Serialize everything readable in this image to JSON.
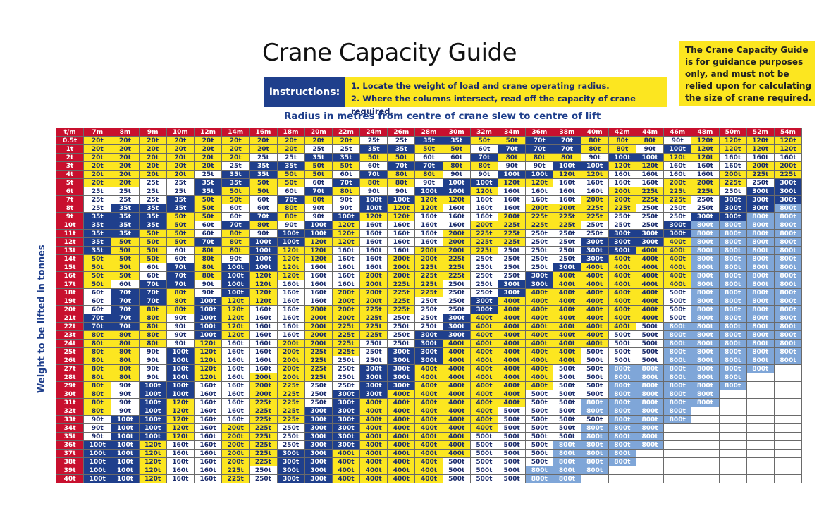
{
  "title": "Crane Capacity Guide",
  "instructions": {
    "label": "Instructions:",
    "step1": "1. Locate the weight of load and crane operating radius.",
    "step2": "2. Where the columns intersect, read off the capacity of crane required."
  },
  "disclaimer": "The Crane Capacity Guide is for guidance purposes only, and must not be relied upon for calculating the size of crane required.",
  "radius_title": "Radius in metres from centre of crane slew to centre of lift",
  "weight_axis": "Weight to be lifted in tonnes",
  "colors": {
    "header_red": "#c8102e",
    "yellow": "#fce620",
    "navy": "#1f3f8c",
    "light_blue": "#7fa6d8",
    "white": "#ffffff"
  },
  "corner": "t/m",
  "columns": [
    "7m",
    "8m",
    "9m",
    "10m",
    "12m",
    "14m",
    "16m",
    "18m",
    "20m",
    "22m",
    "24m",
    "26m",
    "28m",
    "30m",
    "32m",
    "34m",
    "36m",
    "38m",
    "40m",
    "42m",
    "44m",
    "46m",
    "48m",
    "50m",
    "52m",
    "54m"
  ],
  "rows": [
    {
      "w": "0.5t",
      "c": [
        "20t",
        "20t",
        "20t",
        "20t",
        "20t",
        "20t",
        "20t",
        "20t",
        "20t",
        "20t",
        "25t",
        "25t",
        "35t",
        "35t",
        "50t",
        "50t",
        "70t",
        "70t",
        "80t",
        "80t",
        "80t",
        "90t",
        "120t",
        "120t",
        "120t",
        "120t"
      ]
    },
    {
      "w": "1t",
      "c": [
        "20t",
        "20t",
        "20t",
        "20t",
        "20t",
        "20t",
        "20t",
        "20t",
        "25t",
        "25t",
        "35t",
        "35t",
        "50t",
        "50t",
        "60t",
        "70t",
        "70t",
        "70t",
        "80t",
        "80t",
        "90t",
        "100t",
        "120t",
        "120t",
        "120t",
        "120t"
      ]
    },
    {
      "w": "2t",
      "c": [
        "20t",
        "20t",
        "20t",
        "20t",
        "20t",
        "20t",
        "25t",
        "25t",
        "35t",
        "35t",
        "50t",
        "50t",
        "60t",
        "60t",
        "70t",
        "80t",
        "80t",
        "80t",
        "90t",
        "100t",
        "100t",
        "120t",
        "120t",
        "160t",
        "160t",
        "160t"
      ]
    },
    {
      "w": "3t",
      "c": [
        "20t",
        "20t",
        "20t",
        "20t",
        "20t",
        "25t",
        "35t",
        "35t",
        "50t",
        "50t",
        "60t",
        "70t",
        "70t",
        "80t",
        "80t",
        "90t",
        "90t",
        "100t",
        "100t",
        "120t",
        "120t",
        "160t",
        "160t",
        "160t",
        "200t",
        "200t"
      ]
    },
    {
      "w": "4t",
      "c": [
        "20t",
        "20t",
        "20t",
        "20t",
        "25t",
        "35t",
        "35t",
        "50t",
        "50t",
        "60t",
        "70t",
        "80t",
        "80t",
        "90t",
        "90t",
        "100t",
        "100t",
        "120t",
        "120t",
        "160t",
        "160t",
        "160t",
        "160t",
        "200t",
        "225t",
        "225t"
      ]
    },
    {
      "w": "5t",
      "c": [
        "20t",
        "20t",
        "25t",
        "25t",
        "35t",
        "35t",
        "50t",
        "50t",
        "60t",
        "70t",
        "80t",
        "80t",
        "90t",
        "100t",
        "100t",
        "120t",
        "120t",
        "160t",
        "160t",
        "160t",
        "160t",
        "200t",
        "200t",
        "225t",
        "250t",
        "300t"
      ]
    },
    {
      "w": "6t",
      "c": [
        "25t",
        "25t",
        "25t",
        "25t",
        "35t",
        "50t",
        "50t",
        "60t",
        "70t",
        "80t",
        "90t",
        "90t",
        "100t",
        "100t",
        "120t",
        "160t",
        "160t",
        "160t",
        "160t",
        "200t",
        "225t",
        "225t",
        "225t",
        "250t",
        "300t",
        "300t"
      ]
    },
    {
      "w": "7t",
      "c": [
        "25t",
        "25t",
        "25t",
        "35t",
        "50t",
        "50t",
        "60t",
        "70t",
        "80t",
        "90t",
        "100t",
        "100t",
        "120t",
        "120t",
        "160t",
        "160t",
        "160t",
        "160t",
        "200t",
        "200t",
        "225t",
        "225t",
        "250t",
        "300t",
        "300t",
        "300t"
      ]
    },
    {
      "w": "8t",
      "c": [
        "25t",
        "35t",
        "35t",
        "35t",
        "50t",
        "60t",
        "60t",
        "80t",
        "90t",
        "90t",
        "100t",
        "120t",
        "120t",
        "160t",
        "160t",
        "160t",
        "200t",
        "200t",
        "225t",
        "225t",
        "250t",
        "250t",
        "250t",
        "300t",
        "300t",
        "800t"
      ]
    },
    {
      "w": "9t",
      "c": [
        "35t",
        "35t",
        "35t",
        "50t",
        "50t",
        "60t",
        "70t",
        "80t",
        "90t",
        "100t",
        "120t",
        "120t",
        "160t",
        "160t",
        "160t",
        "200t",
        "225t",
        "225t",
        "225t",
        "250t",
        "250t",
        "250t",
        "300t",
        "300t",
        "800t",
        "800t"
      ]
    },
    {
      "w": "10t",
      "c": [
        "35t",
        "35t",
        "35t",
        "50t",
        "60t",
        "70t",
        "80t",
        "90t",
        "100t",
        "120t",
        "160t",
        "160t",
        "160t",
        "160t",
        "200t",
        "225t",
        "225t",
        "225t",
        "250t",
        "250t",
        "250t",
        "300t",
        "800t",
        "800t",
        "800t",
        "800t"
      ]
    },
    {
      "w": "11t",
      "c": [
        "35t",
        "35t",
        "50t",
        "50t",
        "60t",
        "80t",
        "90t",
        "100t",
        "100t",
        "120t",
        "160t",
        "160t",
        "160t",
        "200t",
        "225t",
        "225t",
        "250t",
        "250t",
        "250t",
        "300t",
        "300t",
        "300t",
        "800t",
        "800t",
        "800t",
        "800t"
      ]
    },
    {
      "w": "12t",
      "c": [
        "35t",
        "50t",
        "50t",
        "50t",
        "70t",
        "80t",
        "100t",
        "100t",
        "120t",
        "120t",
        "160t",
        "160t",
        "160t",
        "200t",
        "225t",
        "225t",
        "250t",
        "250t",
        "300t",
        "300t",
        "300t",
        "400t",
        "800t",
        "800t",
        "800t",
        "800t"
      ]
    },
    {
      "w": "13t",
      "c": [
        "35t",
        "50t",
        "50t",
        "60t",
        "80t",
        "80t",
        "100t",
        "120t",
        "120t",
        "160t",
        "160t",
        "160t",
        "200t",
        "200t",
        "225t",
        "250t",
        "250t",
        "250t",
        "300t",
        "300t",
        "400t",
        "400t",
        "800t",
        "800t",
        "800t",
        "800t"
      ]
    },
    {
      "w": "14t",
      "c": [
        "50t",
        "50t",
        "50t",
        "60t",
        "80t",
        "90t",
        "100t",
        "120t",
        "120t",
        "160t",
        "160t",
        "200t",
        "200t",
        "225t",
        "250t",
        "250t",
        "250t",
        "250t",
        "300t",
        "400t",
        "400t",
        "400t",
        "800t",
        "800t",
        "800t",
        "800t"
      ]
    },
    {
      "w": "15t",
      "c": [
        "50t",
        "50t",
        "60t",
        "70t",
        "80t",
        "100t",
        "100t",
        "120t",
        "160t",
        "160t",
        "160t",
        "200t",
        "225t",
        "225t",
        "250t",
        "250t",
        "250t",
        "300t",
        "400t",
        "400t",
        "400t",
        "400t",
        "800t",
        "800t",
        "800t",
        "800t"
      ]
    },
    {
      "w": "16t",
      "c": [
        "50t",
        "50t",
        "60t",
        "70t",
        "80t",
        "100t",
        "120t",
        "120t",
        "160t",
        "160t",
        "200t",
        "200t",
        "225t",
        "225t",
        "250t",
        "250t",
        "300t",
        "400t",
        "400t",
        "400t",
        "400t",
        "400t",
        "800t",
        "800t",
        "800t",
        "800t"
      ]
    },
    {
      "w": "17t",
      "c": [
        "50t",
        "60t",
        "70t",
        "70t",
        "90t",
        "100t",
        "120t",
        "160t",
        "160t",
        "160t",
        "200t",
        "225t",
        "225t",
        "250t",
        "250t",
        "300t",
        "300t",
        "400t",
        "400t",
        "400t",
        "400t",
        "400t",
        "800t",
        "800t",
        "800t",
        "800t"
      ]
    },
    {
      "w": "18t",
      "c": [
        "60t",
        "70t",
        "70t",
        "80t",
        "90t",
        "100t",
        "120t",
        "160t",
        "160t",
        "200t",
        "200t",
        "225t",
        "225t",
        "250t",
        "250t",
        "300t",
        "400t",
        "400t",
        "400t",
        "400t",
        "400t",
        "500t",
        "800t",
        "800t",
        "800t",
        "800t"
      ]
    },
    {
      "w": "19t",
      "c": [
        "60t",
        "70t",
        "70t",
        "80t",
        "100t",
        "120t",
        "120t",
        "160t",
        "160t",
        "200t",
        "200t",
        "225t",
        "250t",
        "250t",
        "300t",
        "400t",
        "400t",
        "400t",
        "400t",
        "400t",
        "400t",
        "500t",
        "800t",
        "800t",
        "800t",
        "800t"
      ]
    },
    {
      "w": "20t",
      "c": [
        "60t",
        "70t",
        "80t",
        "80t",
        "100t",
        "120t",
        "160t",
        "160t",
        "200t",
        "200t",
        "225t",
        "225t",
        "250t",
        "250t",
        "300t",
        "400t",
        "400t",
        "400t",
        "400t",
        "400t",
        "400t",
        "500t",
        "800t",
        "800t",
        "800t",
        "800t"
      ]
    },
    {
      "w": "21t",
      "c": [
        "70t",
        "70t",
        "80t",
        "90t",
        "100t",
        "120t",
        "160t",
        "160t",
        "200t",
        "200t",
        "225t",
        "250t",
        "250t",
        "300t",
        "400t",
        "400t",
        "400t",
        "400t",
        "400t",
        "400t",
        "400t",
        "500t",
        "800t",
        "800t",
        "800t",
        "800t"
      ]
    },
    {
      "w": "22t",
      "c": [
        "70t",
        "70t",
        "80t",
        "90t",
        "100t",
        "120t",
        "160t",
        "160t",
        "200t",
        "225t",
        "225t",
        "250t",
        "250t",
        "300t",
        "400t",
        "400t",
        "400t",
        "400t",
        "400t",
        "400t",
        "500t",
        "800t",
        "800t",
        "800t",
        "800t",
        "800t"
      ]
    },
    {
      "w": "23t",
      "c": [
        "80t",
        "80t",
        "80t",
        "90t",
        "100t",
        "120t",
        "160t",
        "160t",
        "200t",
        "225t",
        "225t",
        "250t",
        "300t",
        "300t",
        "400t",
        "400t",
        "400t",
        "400t",
        "400t",
        "500t",
        "500t",
        "800t",
        "800t",
        "800t",
        "800t",
        "800t"
      ]
    },
    {
      "w": "24t",
      "c": [
        "80t",
        "80t",
        "80t",
        "90t",
        "120t",
        "160t",
        "160t",
        "200t",
        "200t",
        "225t",
        "250t",
        "250t",
        "300t",
        "400t",
        "400t",
        "400t",
        "400t",
        "400t",
        "400t",
        "500t",
        "500t",
        "800t",
        "800t",
        "800t",
        "800t",
        "800t"
      ]
    },
    {
      "w": "25t",
      "c": [
        "80t",
        "80t",
        "90t",
        "100t",
        "120t",
        "160t",
        "160t",
        "200t",
        "225t",
        "225t",
        "250t",
        "300t",
        "300t",
        "400t",
        "400t",
        "400t",
        "400t",
        "400t",
        "500t",
        "500t",
        "500t",
        "800t",
        "800t",
        "800t",
        "800t",
        "800t"
      ]
    },
    {
      "w": "26t",
      "c": [
        "80t",
        "80t",
        "90t",
        "100t",
        "120t",
        "160t",
        "160t",
        "200t",
        "225t",
        "250t",
        "250t",
        "300t",
        "300t",
        "400t",
        "400t",
        "400t",
        "400t",
        "400t",
        "500t",
        "500t",
        "500t",
        "800t",
        "800t",
        "800t",
        "800t",
        "800t"
      ]
    },
    {
      "w": "27t",
      "c": [
        "80t",
        "80t",
        "90t",
        "100t",
        "120t",
        "160t",
        "160t",
        "200t",
        "225t",
        "250t",
        "300t",
        "300t",
        "400t",
        "400t",
        "400t",
        "400t",
        "400t",
        "500t",
        "500t",
        "800t",
        "800t",
        "800t",
        "800t",
        "800t",
        "800t",
        ""
      ]
    },
    {
      "w": "28t",
      "c": [
        "80t",
        "80t",
        "90t",
        "100t",
        "120t",
        "160t",
        "200t",
        "200t",
        "225t",
        "250t",
        "300t",
        "300t",
        "400t",
        "400t",
        "400t",
        "400t",
        "400t",
        "500t",
        "500t",
        "800t",
        "800t",
        "800t",
        "800t",
        "800t",
        "",
        ""
      ]
    },
    {
      "w": "29t",
      "c": [
        "80t",
        "90t",
        "100t",
        "100t",
        "160t",
        "160t",
        "200t",
        "225t",
        "250t",
        "250t",
        "300t",
        "300t",
        "400t",
        "400t",
        "400t",
        "400t",
        "400t",
        "500t",
        "500t",
        "800t",
        "800t",
        "800t",
        "800t",
        "800t",
        "",
        ""
      ]
    },
    {
      "w": "30t",
      "c": [
        "80t",
        "90t",
        "100t",
        "100t",
        "160t",
        "160t",
        "200t",
        "225t",
        "250t",
        "300t",
        "300t",
        "400t",
        "400t",
        "400t",
        "400t",
        "400t",
        "500t",
        "500t",
        "500t",
        "800t",
        "800t",
        "800t",
        "800t",
        "",
        "",
        ""
      ]
    },
    {
      "w": "31t",
      "c": [
        "80t",
        "90t",
        "100t",
        "120t",
        "160t",
        "160t",
        "225t",
        "225t",
        "250t",
        "300t",
        "400t",
        "400t",
        "400t",
        "400t",
        "400t",
        "400t",
        "500t",
        "500t",
        "800t",
        "800t",
        "800t",
        "800t",
        "800t",
        "",
        "",
        ""
      ]
    },
    {
      "w": "32t",
      "c": [
        "80t",
        "90t",
        "100t",
        "120t",
        "160t",
        "160t",
        "225t",
        "225t",
        "300t",
        "300t",
        "400t",
        "400t",
        "400t",
        "400t",
        "400t",
        "500t",
        "500t",
        "500t",
        "800t",
        "800t",
        "800t",
        "800t",
        "",
        "",
        "",
        ""
      ]
    },
    {
      "w": "33t",
      "c": [
        "90t",
        "100t",
        "100t",
        "120t",
        "160t",
        "160t",
        "225t",
        "225t",
        "300t",
        "300t",
        "400t",
        "400t",
        "400t",
        "400t",
        "400t",
        "500t",
        "500t",
        "500t",
        "500t",
        "800t",
        "800t",
        "800t",
        "",
        "",
        "",
        ""
      ]
    },
    {
      "w": "34t",
      "c": [
        "90t",
        "100t",
        "100t",
        "120t",
        "160t",
        "200t",
        "225t",
        "250t",
        "300t",
        "300t",
        "400t",
        "400t",
        "400t",
        "400t",
        "400t",
        "500t",
        "500t",
        "500t",
        "800t",
        "800t",
        "800t",
        "",
        "",
        "",
        "",
        ""
      ]
    },
    {
      "w": "35t",
      "c": [
        "90t",
        "100t",
        "100t",
        "120t",
        "160t",
        "200t",
        "225t",
        "250t",
        "300t",
        "300t",
        "400t",
        "400t",
        "400t",
        "400t",
        "500t",
        "500t",
        "500t",
        "500t",
        "800t",
        "800t",
        "800t",
        "",
        "",
        "",
        "",
        ""
      ]
    },
    {
      "w": "36t",
      "c": [
        "100t",
        "100t",
        "120t",
        "160t",
        "160t",
        "200t",
        "225t",
        "250t",
        "300t",
        "300t",
        "400t",
        "400t",
        "400t",
        "400t",
        "500t",
        "500t",
        "500t",
        "800t",
        "800t",
        "800t",
        "800t",
        "",
        "",
        "",
        "",
        ""
      ]
    },
    {
      "w": "37t",
      "c": [
        "100t",
        "100t",
        "120t",
        "160t",
        "160t",
        "200t",
        "225t",
        "300t",
        "300t",
        "400t",
        "400t",
        "400t",
        "400t",
        "400t",
        "500t",
        "500t",
        "500t",
        "800t",
        "800t",
        "800t",
        "",
        "",
        "",
        "",
        "",
        ""
      ]
    },
    {
      "w": "38t",
      "c": [
        "100t",
        "100t",
        "120t",
        "160t",
        "160t",
        "200t",
        "225t",
        "300t",
        "300t",
        "400t",
        "400t",
        "400t",
        "400t",
        "500t",
        "500t",
        "500t",
        "500t",
        "800t",
        "800t",
        "800t",
        "",
        "",
        "",
        "",
        "",
        ""
      ]
    },
    {
      "w": "39t",
      "c": [
        "100t",
        "100t",
        "120t",
        "160t",
        "160t",
        "225t",
        "250t",
        "300t",
        "300t",
        "400t",
        "400t",
        "400t",
        "400t",
        "500t",
        "500t",
        "500t",
        "800t",
        "800t",
        "800t",
        "",
        "",
        "",
        "",
        "",
        "",
        ""
      ]
    },
    {
      "w": "40t",
      "c": [
        "100t",
        "100t",
        "120t",
        "160t",
        "160t",
        "225t",
        "250t",
        "300t",
        "300t",
        "400t",
        "400t",
        "400t",
        "400t",
        "500t",
        "500t",
        "500t",
        "800t",
        "800t",
        "",
        "",
        "",
        "",
        "",
        "",
        "",
        ""
      ]
    }
  ]
}
